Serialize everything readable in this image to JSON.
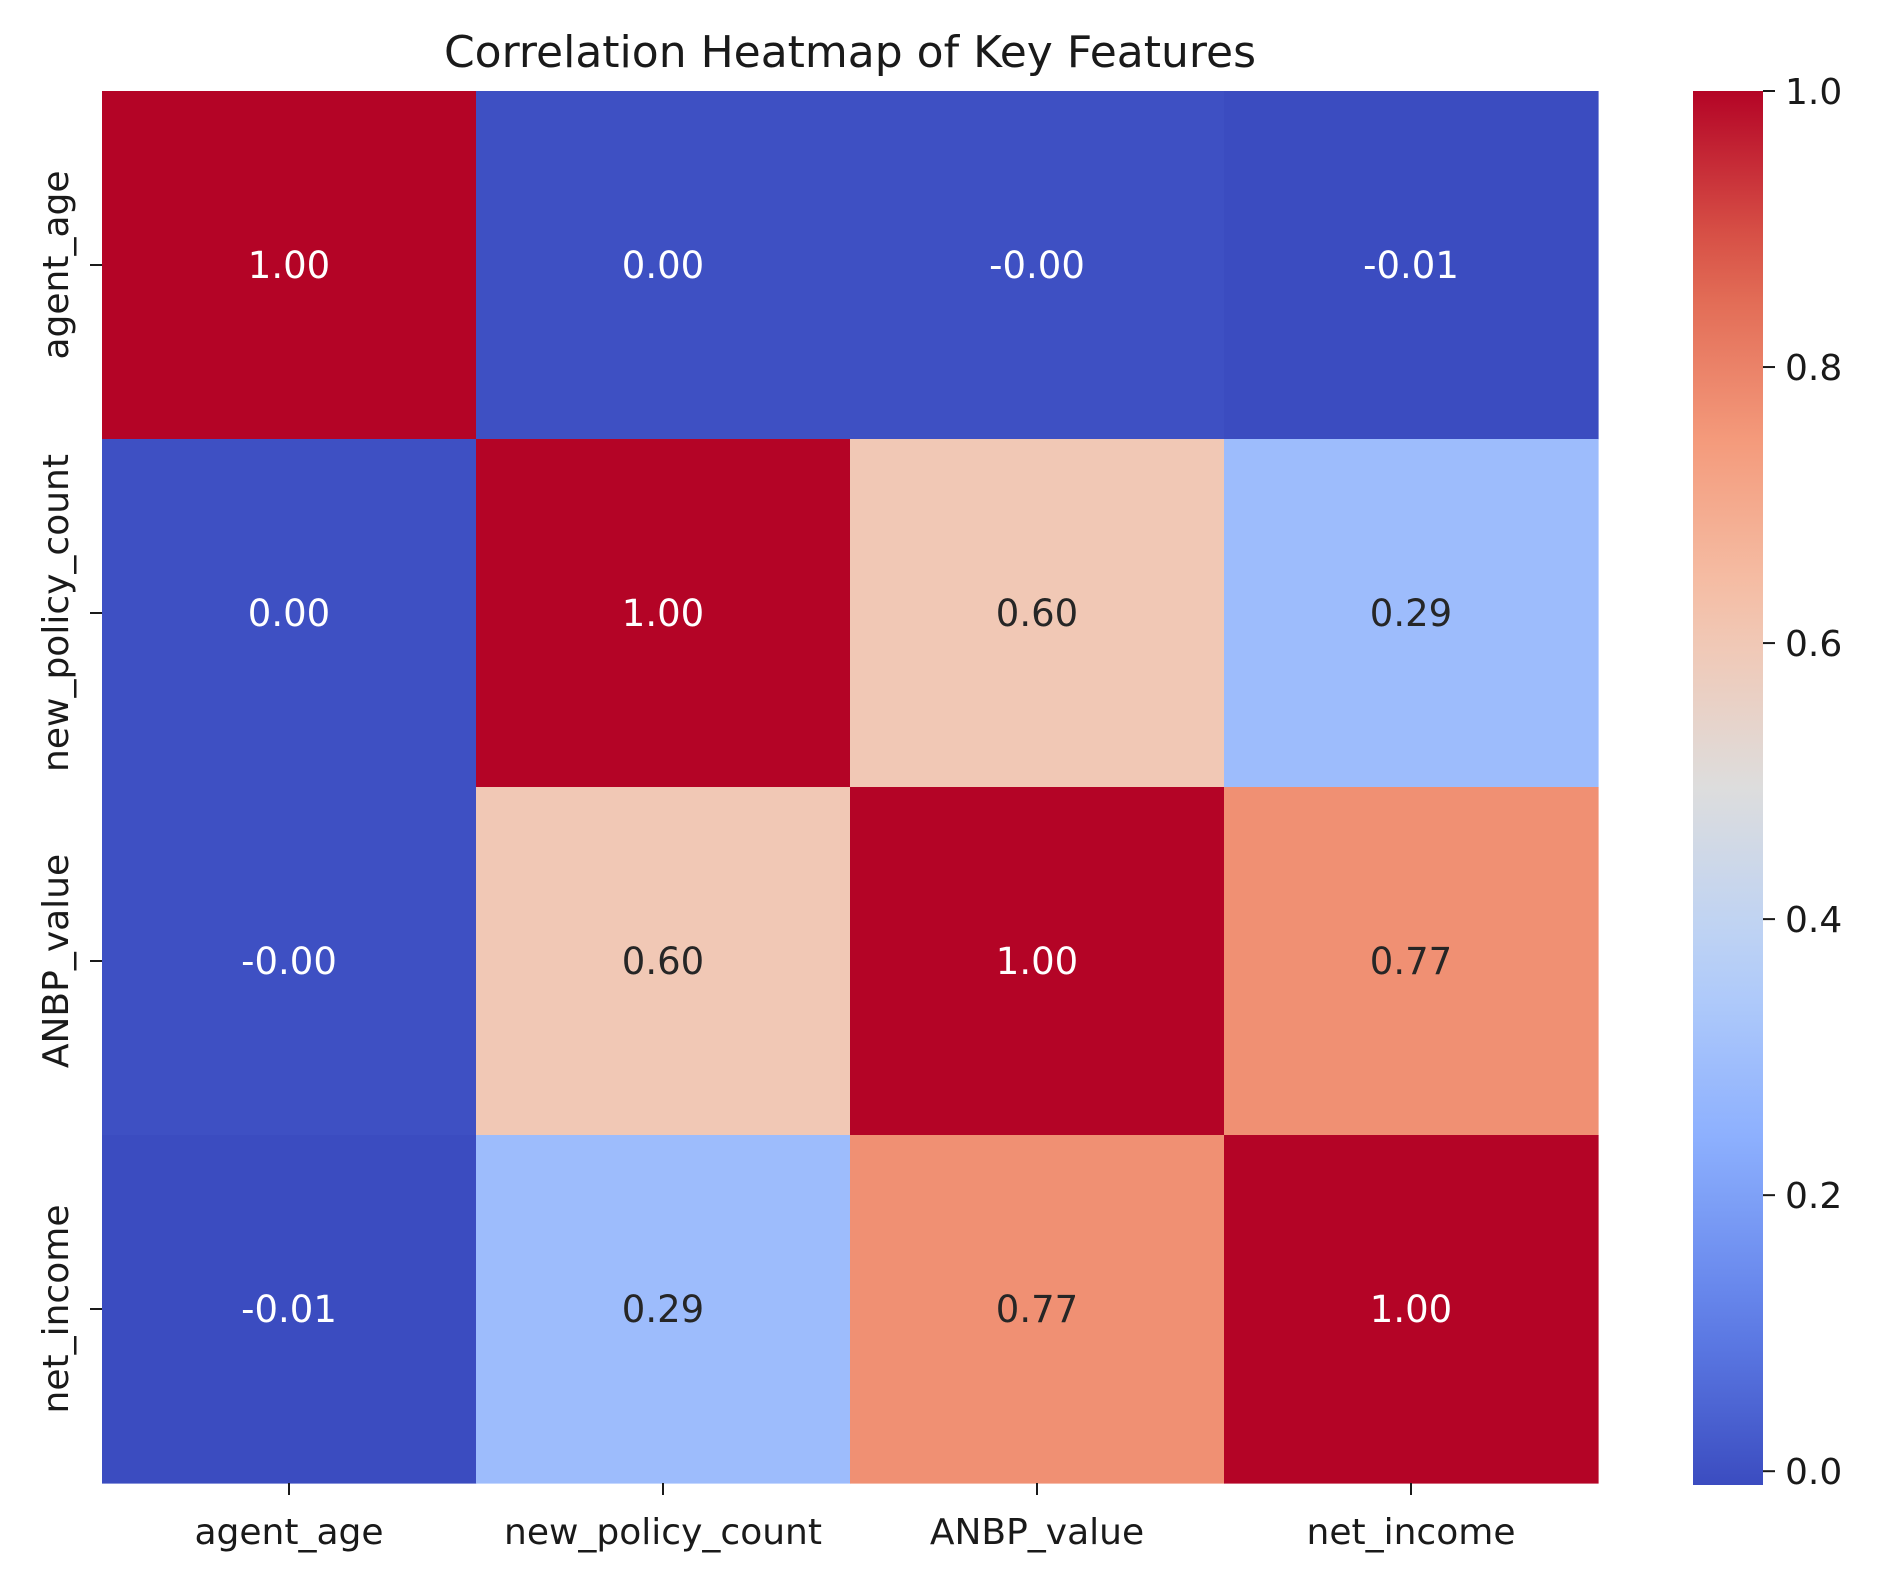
{
  "chart_data": {
    "type": "heatmap",
    "title": "Correlation Heatmap of Key Features",
    "x_labels": [
      "agent_age",
      "new_policy_count",
      "ANBP_value",
      "net_income"
    ],
    "y_labels": [
      "agent_age",
      "new_policy_count",
      "ANBP_value",
      "net_income"
    ],
    "values": [
      [
        1.0,
        0.0,
        -0.0,
        -0.01
      ],
      [
        0.0,
        1.0,
        0.6,
        0.29
      ],
      [
        -0.0,
        0.6,
        1.0,
        0.77
      ],
      [
        -0.01,
        0.29,
        0.77,
        1.0
      ]
    ],
    "cell_labels": [
      [
        "1.00",
        "0.00",
        "-0.00",
        "-0.01"
      ],
      [
        "0.00",
        "1.00",
        "0.60",
        "0.29"
      ],
      [
        "-0.00",
        "0.60",
        "1.00",
        "0.77"
      ],
      [
        "-0.01",
        "0.29",
        "0.77",
        "1.00"
      ]
    ],
    "colormap": "coolwarm",
    "colorbar": {
      "range": [
        -0.01,
        1.0
      ],
      "ticks": [
        0.0,
        0.2,
        0.4,
        0.6,
        0.8,
        1.0
      ],
      "tick_labels": [
        "0.0",
        "0.2",
        "0.4",
        "0.6",
        "0.8",
        "1.0"
      ]
    },
    "legend": "colorbar-right"
  }
}
